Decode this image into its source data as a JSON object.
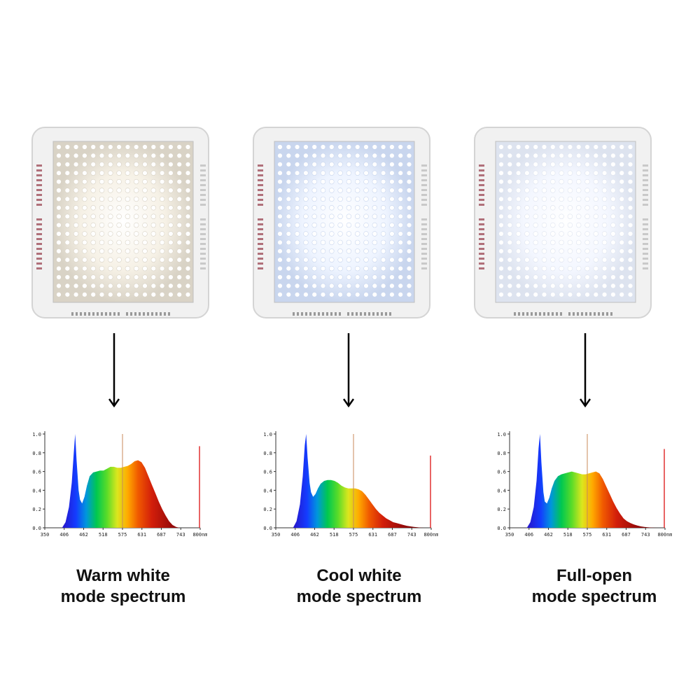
{
  "panels": [
    {
      "name": "warm",
      "led_color": "#f6f1e6",
      "board_tint": "#d9d3c6"
    },
    {
      "name": "cool",
      "led_color": "#eef4ff",
      "board_tint": "#c9d6ee"
    },
    {
      "name": "full",
      "led_color": "#f4f7ff",
      "board_tint": "#dde3ef"
    }
  ],
  "captions": [
    {
      "line1": "Warm white",
      "line2": "mode spectrum"
    },
    {
      "line1": "Cool white",
      "line2": "mode spectrum"
    },
    {
      "line1": "Full-open",
      "line2": "mode spectrum"
    }
  ],
  "chart_data": [
    {
      "type": "area",
      "x_ticks": [
        "350",
        "406",
        "462",
        "518",
        "575",
        "631",
        "687",
        "743",
        "800nm"
      ],
      "y_ticks": [
        "0.0",
        "0.2",
        "0.4",
        "0.6",
        "0.8",
        "1.0"
      ],
      "xlim": [
        350,
        800
      ],
      "ylim": [
        0,
        1.0
      ],
      "marker_x": 575,
      "end_marker_height": 0.87,
      "x": [
        400,
        410,
        420,
        428,
        434,
        438,
        442,
        448,
        452,
        458,
        465,
        472,
        480,
        490,
        500,
        510,
        520,
        530,
        540,
        550,
        560,
        570,
        580,
        590,
        600,
        610,
        620,
        630,
        640,
        650,
        660,
        670,
        680,
        690,
        700,
        710,
        720,
        730,
        740
      ],
      "values": [
        0.0,
        0.06,
        0.22,
        0.48,
        0.8,
        1.0,
        0.72,
        0.4,
        0.3,
        0.26,
        0.33,
        0.45,
        0.55,
        0.59,
        0.6,
        0.61,
        0.61,
        0.63,
        0.65,
        0.65,
        0.64,
        0.64,
        0.65,
        0.66,
        0.68,
        0.71,
        0.72,
        0.7,
        0.64,
        0.55,
        0.46,
        0.37,
        0.28,
        0.2,
        0.13,
        0.07,
        0.03,
        0.01,
        0.0
      ]
    },
    {
      "type": "area",
      "x_ticks": [
        "350",
        "406",
        "462",
        "518",
        "575",
        "631",
        "687",
        "743",
        "800nm"
      ],
      "y_ticks": [
        "0.0",
        "0.2",
        "0.4",
        "0.6",
        "0.8",
        "1.0"
      ],
      "xlim": [
        350,
        800
      ],
      "ylim": [
        0,
        1.0
      ],
      "marker_x": 575,
      "end_marker_height": 0.77,
      "x": [
        400,
        410,
        420,
        428,
        434,
        438,
        442,
        448,
        452,
        458,
        465,
        472,
        480,
        490,
        500,
        510,
        520,
        530,
        540,
        550,
        560,
        570,
        580,
        590,
        600,
        610,
        620,
        630,
        640,
        650,
        660,
        670,
        680,
        690,
        700,
        710,
        720,
        730,
        740,
        750,
        760,
        770,
        780
      ],
      "values": [
        0.0,
        0.07,
        0.25,
        0.55,
        0.88,
        1.0,
        0.75,
        0.48,
        0.38,
        0.33,
        0.36,
        0.42,
        0.47,
        0.5,
        0.51,
        0.51,
        0.5,
        0.48,
        0.45,
        0.43,
        0.42,
        0.42,
        0.42,
        0.41,
        0.39,
        0.35,
        0.3,
        0.25,
        0.2,
        0.16,
        0.13,
        0.1,
        0.08,
        0.06,
        0.05,
        0.04,
        0.03,
        0.02,
        0.015,
        0.01,
        0.005,
        0.002,
        0.0
      ]
    },
    {
      "type": "area",
      "x_ticks": [
        "350",
        "406",
        "462",
        "518",
        "575",
        "631",
        "687",
        "743",
        "800nm"
      ],
      "y_ticks": [
        "0.0",
        "0.2",
        "0.4",
        "0.6",
        "0.8",
        "1.0"
      ],
      "xlim": [
        350,
        800
      ],
      "ylim": [
        0,
        1.0
      ],
      "marker_x": 575,
      "end_marker_height": 0.84,
      "x": [
        400,
        410,
        420,
        428,
        434,
        438,
        442,
        448,
        452,
        458,
        465,
        472,
        480,
        490,
        500,
        510,
        520,
        530,
        540,
        550,
        560,
        570,
        580,
        590,
        600,
        610,
        620,
        630,
        640,
        650,
        660,
        670,
        680,
        690,
        700,
        710,
        720,
        730,
        740,
        750,
        760,
        770,
        780
      ],
      "values": [
        0.0,
        0.06,
        0.22,
        0.5,
        0.85,
        1.0,
        0.7,
        0.38,
        0.28,
        0.26,
        0.32,
        0.42,
        0.5,
        0.55,
        0.57,
        0.58,
        0.59,
        0.6,
        0.59,
        0.58,
        0.57,
        0.57,
        0.58,
        0.59,
        0.6,
        0.58,
        0.52,
        0.44,
        0.36,
        0.28,
        0.21,
        0.15,
        0.1,
        0.07,
        0.05,
        0.035,
        0.025,
        0.015,
        0.01,
        0.006,
        0.003,
        0.001,
        0.0
      ]
    }
  ]
}
